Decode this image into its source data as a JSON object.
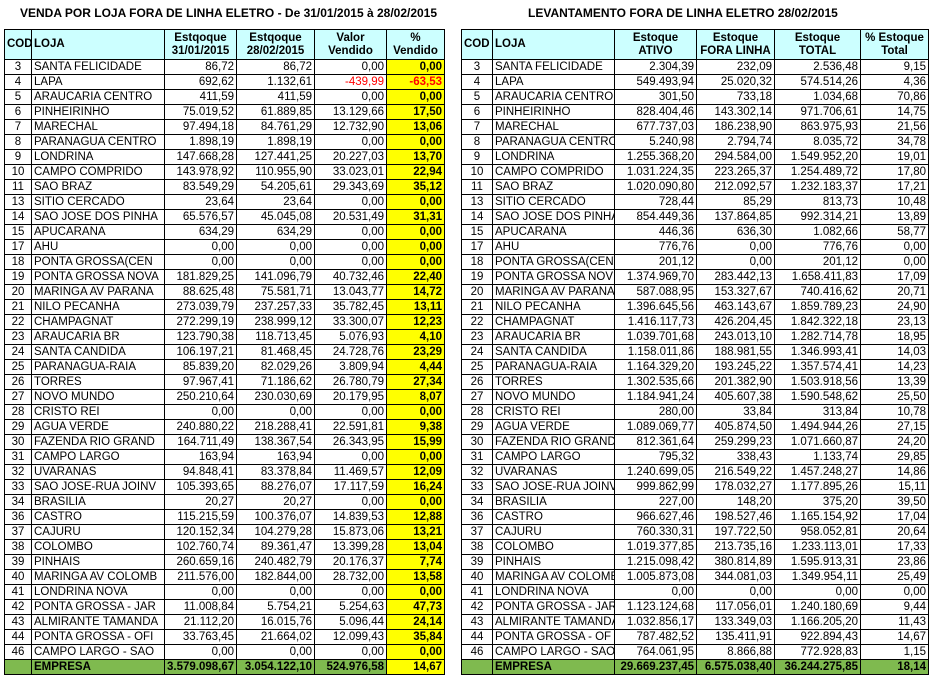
{
  "left": {
    "title": "VENDA POR LOJA FORA DE LINHA ELETRO - De 31/01/2015 à 28/02/2015",
    "headers": {
      "cod": "COD",
      "loja": "LOJA",
      "est1_l1": "Estqoque",
      "est1_l2": "31/01/2015",
      "est2_l1": "Estqoque",
      "est2_l2": "28/02/2015",
      "val_l1": "Valor",
      "val_l2": "Vendido",
      "pct_l1": "%",
      "pct_l2": "Vendido"
    },
    "rows": [
      {
        "cod": "3",
        "loja": "SANTA FELICIDADE",
        "est1": "86,72",
        "est2": "86,72",
        "valor": "0,00",
        "pct": "0,00"
      },
      {
        "cod": "4",
        "loja": "LAPA",
        "est1": "692,62",
        "est2": "1.132,61",
        "valor": "-439,99",
        "pct": "-63,53",
        "neg": true
      },
      {
        "cod": "5",
        "loja": "ARAUCARIA CENTRO",
        "est1": "411,59",
        "est2": "411,59",
        "valor": "0,00",
        "pct": "0,00"
      },
      {
        "cod": "6",
        "loja": "PINHEIRINHO",
        "est1": "75.019,52",
        "est2": "61.889,85",
        "valor": "13.129,66",
        "pct": "17,50"
      },
      {
        "cod": "7",
        "loja": "MARECHAL",
        "est1": "97.494,18",
        "est2": "84.761,29",
        "valor": "12.732,90",
        "pct": "13,06"
      },
      {
        "cod": "8",
        "loja": "PARANAGUA CENTRO",
        "est1": "1.898,19",
        "est2": "1.898,19",
        "valor": "0,00",
        "pct": "0,00"
      },
      {
        "cod": "9",
        "loja": "LONDRINA",
        "est1": "147.668,28",
        "est2": "127.441,25",
        "valor": "20.227,03",
        "pct": "13,70"
      },
      {
        "cod": "10",
        "loja": "CAMPO COMPRIDO",
        "est1": "143.978,92",
        "est2": "110.955,90",
        "valor": "33.023,01",
        "pct": "22,94"
      },
      {
        "cod": "11",
        "loja": "SAO BRAZ",
        "est1": "83.549,29",
        "est2": "54.205,61",
        "valor": "29.343,69",
        "pct": "35,12"
      },
      {
        "cod": "13",
        "loja": "SITIO CERCADO",
        "est1": "23,64",
        "est2": "23,64",
        "valor": "0,00",
        "pct": "0,00"
      },
      {
        "cod": "14",
        "loja": "SAO JOSE DOS PINHA",
        "est1": "65.576,57",
        "est2": "45.045,08",
        "valor": "20.531,49",
        "pct": "31,31"
      },
      {
        "cod": "15",
        "loja": "APUCARANA",
        "est1": "634,29",
        "est2": "634,29",
        "valor": "0,00",
        "pct": "0,00"
      },
      {
        "cod": "17",
        "loja": "AHU",
        "est1": "0,00",
        "est2": "0,00",
        "valor": "0,00",
        "pct": "0,00"
      },
      {
        "cod": "18",
        "loja": "PONTA GROSSA(CEN",
        "est1": "0,00",
        "est2": "0,00",
        "valor": "0,00",
        "pct": "0,00"
      },
      {
        "cod": "19",
        "loja": "PONTA GROSSA NOVA",
        "est1": "181.829,25",
        "est2": "141.096,79",
        "valor": "40.732,46",
        "pct": "22,40"
      },
      {
        "cod": "20",
        "loja": "MARINGA AV PARANA",
        "est1": "88.625,48",
        "est2": "75.581,71",
        "valor": "13.043,77",
        "pct": "14,72"
      },
      {
        "cod": "21",
        "loja": "NILO PECANHA",
        "est1": "273.039,79",
        "est2": "237.257,33",
        "valor": "35.782,45",
        "pct": "13,11"
      },
      {
        "cod": "22",
        "loja": "CHAMPAGNAT",
        "est1": "272.299,19",
        "est2": "238.999,12",
        "valor": "33.300,07",
        "pct": "12,23"
      },
      {
        "cod": "23",
        "loja": "ARAUCARIA BR",
        "est1": "123.790,38",
        "est2": "118.713,45",
        "valor": "5.076,93",
        "pct": "4,10"
      },
      {
        "cod": "24",
        "loja": "SANTA CANDIDA",
        "est1": "106.197,21",
        "est2": "81.468,45",
        "valor": "24.728,76",
        "pct": "23,29"
      },
      {
        "cod": "25",
        "loja": "PARANAGUA-RAIA",
        "est1": "85.839,20",
        "est2": "82.029,26",
        "valor": "3.809,94",
        "pct": "4,44"
      },
      {
        "cod": "26",
        "loja": "TORRES",
        "est1": "97.967,41",
        "est2": "71.186,62",
        "valor": "26.780,79",
        "pct": "27,34"
      },
      {
        "cod": "27",
        "loja": "NOVO MUNDO",
        "est1": "250.210,64",
        "est2": "230.030,69",
        "valor": "20.179,95",
        "pct": "8,07"
      },
      {
        "cod": "28",
        "loja": "CRISTO REI",
        "est1": "0,00",
        "est2": "0,00",
        "valor": "0,00",
        "pct": "0,00"
      },
      {
        "cod": "29",
        "loja": "AGUA VERDE",
        "est1": "240.880,22",
        "est2": "218.288,41",
        "valor": "22.591,81",
        "pct": "9,38"
      },
      {
        "cod": "30",
        "loja": "FAZENDA RIO GRAND",
        "est1": "164.711,49",
        "est2": "138.367,54",
        "valor": "26.343,95",
        "pct": "15,99"
      },
      {
        "cod": "31",
        "loja": "CAMPO LARGO",
        "est1": "163,94",
        "est2": "163,94",
        "valor": "0,00",
        "pct": "0,00"
      },
      {
        "cod": "32",
        "loja": "UVARANAS",
        "est1": "94.848,41",
        "est2": "83.378,84",
        "valor": "11.469,57",
        "pct": "12,09"
      },
      {
        "cod": "33",
        "loja": "SAO JOSE-RUA JOINV",
        "est1": "105.393,65",
        "est2": "88.276,07",
        "valor": "17.117,59",
        "pct": "16,24"
      },
      {
        "cod": "34",
        "loja": "BRASILIA",
        "est1": "20,27",
        "est2": "20,27",
        "valor": "0,00",
        "pct": "0,00"
      },
      {
        "cod": "36",
        "loja": "CASTRO",
        "est1": "115.215,59",
        "est2": "100.376,07",
        "valor": "14.839,53",
        "pct": "12,88"
      },
      {
        "cod": "37",
        "loja": "CAJURU",
        "est1": "120.152,34",
        "est2": "104.279,28",
        "valor": "15.873,06",
        "pct": "13,21"
      },
      {
        "cod": "38",
        "loja": "COLOMBO",
        "est1": "102.760,74",
        "est2": "89.361,47",
        "valor": "13.399,28",
        "pct": "13,04"
      },
      {
        "cod": "39",
        "loja": "PINHAIS",
        "est1": "260.659,16",
        "est2": "240.482,79",
        "valor": "20.176,37",
        "pct": "7,74"
      },
      {
        "cod": "40",
        "loja": "MARINGA AV COLOMB",
        "est1": "211.576,00",
        "est2": "182.844,00",
        "valor": "28.732,00",
        "pct": "13,58"
      },
      {
        "cod": "41",
        "loja": "LONDRINA NOVA",
        "est1": "0,00",
        "est2": "0,00",
        "valor": "0,00",
        "pct": "0,00"
      },
      {
        "cod": "42",
        "loja": "PONTA GROSSA - JAR",
        "est1": "11.008,84",
        "est2": "5.754,21",
        "valor": "5.254,63",
        "pct": "47,73"
      },
      {
        "cod": "43",
        "loja": "ALMIRANTE TAMANDA",
        "est1": "21.112,20",
        "est2": "16.015,76",
        "valor": "5.096,44",
        "pct": "24,14"
      },
      {
        "cod": "44",
        "loja": "PONTA GROSSA - OFI",
        "est1": "33.763,45",
        "est2": "21.664,02",
        "valor": "12.099,43",
        "pct": "35,84"
      },
      {
        "cod": "46",
        "loja": "CAMPO LARGO - SAO",
        "est1": "0,00",
        "est2": "0,00",
        "valor": "0,00",
        "pct": "0,00"
      }
    ],
    "total": {
      "label": "EMPRESA",
      "est1": "3.579.098,67",
      "est2": "3.054.122,10",
      "valor": "524.976,58",
      "pct": "14,67"
    }
  },
  "right": {
    "title": "LEVANTAMENTO FORA DE LINHA ELETRO 28/02/2015",
    "headers": {
      "cod": "COD",
      "loja": "LOJA",
      "a_l1": "Estoque",
      "a_l2": "ATIVO",
      "b_l1": "Estoque",
      "b_l2": "FORA LINHA",
      "c_l1": "Estoque",
      "c_l2": "TOTAL",
      "d_l1": "% Estoque",
      "d_l2": "Total"
    },
    "rows": [
      {
        "cod": "3",
        "loja": "SANTA FELICIDADE",
        "ativo": "2.304,39",
        "fora": "232,09",
        "total": "2.536,48",
        "pct": "9,15"
      },
      {
        "cod": "4",
        "loja": "LAPA",
        "ativo": "549.493,94",
        "fora": "25.020,32",
        "total": "574.514,26",
        "pct": "4,36"
      },
      {
        "cod": "5",
        "loja": "ARAUCARIA CENTRO",
        "ativo": "301,50",
        "fora": "733,18",
        "total": "1.034,68",
        "pct": "70,86"
      },
      {
        "cod": "6",
        "loja": "PINHEIRINHO",
        "ativo": "828.404,46",
        "fora": "143.302,14",
        "total": "971.706,61",
        "pct": "14,75"
      },
      {
        "cod": "7",
        "loja": "MARECHAL",
        "ativo": "677.737,03",
        "fora": "186.238,90",
        "total": "863.975,93",
        "pct": "21,56"
      },
      {
        "cod": "8",
        "loja": "PARANAGUA CENTRO",
        "ativo": "5.240,98",
        "fora": "2.794,74",
        "total": "8.035,72",
        "pct": "34,78"
      },
      {
        "cod": "9",
        "loja": "LONDRINA",
        "ativo": "1.255.368,20",
        "fora": "294.584,00",
        "total": "1.549.952,20",
        "pct": "19,01"
      },
      {
        "cod": "10",
        "loja": "CAMPO COMPRIDO",
        "ativo": "1.031.224,35",
        "fora": "223.265,37",
        "total": "1.254.489,72",
        "pct": "17,80"
      },
      {
        "cod": "11",
        "loja": "SAO BRAZ",
        "ativo": "1.020.090,80",
        "fora": "212.092,57",
        "total": "1.232.183,37",
        "pct": "17,21"
      },
      {
        "cod": "13",
        "loja": "SITIO CERCADO",
        "ativo": "728,44",
        "fora": "85,29",
        "total": "813,73",
        "pct": "10,48"
      },
      {
        "cod": "14",
        "loja": "SAO JOSE DOS PINHA",
        "ativo": "854.449,36",
        "fora": "137.864,85",
        "total": "992.314,21",
        "pct": "13,89"
      },
      {
        "cod": "15",
        "loja": "APUCARANA",
        "ativo": "446,36",
        "fora": "636,30",
        "total": "1.082,66",
        "pct": "58,77"
      },
      {
        "cod": "17",
        "loja": "AHU",
        "ativo": "776,76",
        "fora": "0,00",
        "total": "776,76",
        "pct": "0,00"
      },
      {
        "cod": "18",
        "loja": "PONTA GROSSA(CENT",
        "ativo": "201,12",
        "fora": "0,00",
        "total": "201,12",
        "pct": "0,00"
      },
      {
        "cod": "19",
        "loja": "PONTA GROSSA NOV",
        "ativo": "1.374.969,70",
        "fora": "283.442,13",
        "total": "1.658.411,83",
        "pct": "17,09"
      },
      {
        "cod": "20",
        "loja": "MARINGA AV PARANA",
        "ativo": "587.088,95",
        "fora": "153.327,67",
        "total": "740.416,62",
        "pct": "20,71"
      },
      {
        "cod": "21",
        "loja": "NILO PECANHA",
        "ativo": "1.396.645,56",
        "fora": "463.143,67",
        "total": "1.859.789,23",
        "pct": "24,90"
      },
      {
        "cod": "22",
        "loja": "CHAMPAGNAT",
        "ativo": "1.416.117,73",
        "fora": "426.204,45",
        "total": "1.842.322,18",
        "pct": "23,13"
      },
      {
        "cod": "23",
        "loja": "ARAUCARIA BR",
        "ativo": "1.039.701,68",
        "fora": "243.013,10",
        "total": "1.282.714,78",
        "pct": "18,95"
      },
      {
        "cod": "24",
        "loja": "SANTA CANDIDA",
        "ativo": "1.158.011,86",
        "fora": "188.981,55",
        "total": "1.346.993,41",
        "pct": "14,03"
      },
      {
        "cod": "25",
        "loja": "PARANAGUA-RAIA",
        "ativo": "1.164.329,20",
        "fora": "193.245,22",
        "total": "1.357.574,41",
        "pct": "14,23"
      },
      {
        "cod": "26",
        "loja": "TORRES",
        "ativo": "1.302.535,66",
        "fora": "201.382,90",
        "total": "1.503.918,56",
        "pct": "13,39"
      },
      {
        "cod": "27",
        "loja": "NOVO MUNDO",
        "ativo": "1.184.941,24",
        "fora": "405.607,38",
        "total": "1.590.548,62",
        "pct": "25,50"
      },
      {
        "cod": "28",
        "loja": "CRISTO REI",
        "ativo": "280,00",
        "fora": "33,84",
        "total": "313,84",
        "pct": "10,78"
      },
      {
        "cod": "29",
        "loja": "AGUA VERDE",
        "ativo": "1.089.069,77",
        "fora": "405.874,50",
        "total": "1.494.944,26",
        "pct": "27,15"
      },
      {
        "cod": "30",
        "loja": "FAZENDA RIO GRAND",
        "ativo": "812.361,64",
        "fora": "259.299,23",
        "total": "1.071.660,87",
        "pct": "24,20"
      },
      {
        "cod": "31",
        "loja": "CAMPO LARGO",
        "ativo": "795,32",
        "fora": "338,43",
        "total": "1.133,74",
        "pct": "29,85"
      },
      {
        "cod": "32",
        "loja": "UVARANAS",
        "ativo": "1.240.699,05",
        "fora": "216.549,22",
        "total": "1.457.248,27",
        "pct": "14,86"
      },
      {
        "cod": "33",
        "loja": "SAO JOSE-RUA JOINV",
        "ativo": "999.862,99",
        "fora": "178.032,27",
        "total": "1.177.895,26",
        "pct": "15,11"
      },
      {
        "cod": "34",
        "loja": "BRASILIA",
        "ativo": "227,00",
        "fora": "148,20",
        "total": "375,20",
        "pct": "39,50"
      },
      {
        "cod": "36",
        "loja": "CASTRO",
        "ativo": "966.627,46",
        "fora": "198.527,46",
        "total": "1.165.154,92",
        "pct": "17,04"
      },
      {
        "cod": "37",
        "loja": "CAJURU",
        "ativo": "760.330,31",
        "fora": "197.722,50",
        "total": "958.052,81",
        "pct": "20,64"
      },
      {
        "cod": "38",
        "loja": "COLOMBO",
        "ativo": "1.019.377,85",
        "fora": "213.735,16",
        "total": "1.233.113,01",
        "pct": "17,33"
      },
      {
        "cod": "39",
        "loja": "PINHAIS",
        "ativo": "1.215.098,42",
        "fora": "380.814,89",
        "total": "1.595.913,31",
        "pct": "23,86"
      },
      {
        "cod": "40",
        "loja": "MARINGA AV COLOME",
        "ativo": "1.005.873,08",
        "fora": "344.081,03",
        "total": "1.349.954,11",
        "pct": "25,49"
      },
      {
        "cod": "41",
        "loja": "LONDRINA NOVA",
        "ativo": "0,00",
        "fora": "0,00",
        "total": "0,00",
        "pct": "0,00"
      },
      {
        "cod": "42",
        "loja": "PONTA GROSSA - JAR",
        "ativo": "1.123.124,68",
        "fora": "117.056,01",
        "total": "1.240.180,69",
        "pct": "9,44"
      },
      {
        "cod": "43",
        "loja": "ALMIRANTE TAMANDA",
        "ativo": "1.032.856,17",
        "fora": "133.349,03",
        "total": "1.166.205,20",
        "pct": "11,43"
      },
      {
        "cod": "44",
        "loja": "PONTA GROSSA - OF",
        "ativo": "787.482,52",
        "fora": "135.411,91",
        "total": "922.894,43",
        "pct": "14,67"
      },
      {
        "cod": "46",
        "loja": "CAMPO LARGO - SAO",
        "ativo": "764.061,95",
        "fora": "8.866,88",
        "total": "772.928,83",
        "pct": "1,15"
      }
    ],
    "total": {
      "label": "EMPRESA",
      "ativo": "29.669.237,45",
      "fora": "6.575.038,40",
      "total": "36.244.275,85",
      "pct": "18,14"
    }
  },
  "colors": {
    "header_bg": "#ccffff",
    "pct_bg": "#ffff00",
    "total_bg": "#7fba4f",
    "negative": "#ff0000"
  }
}
